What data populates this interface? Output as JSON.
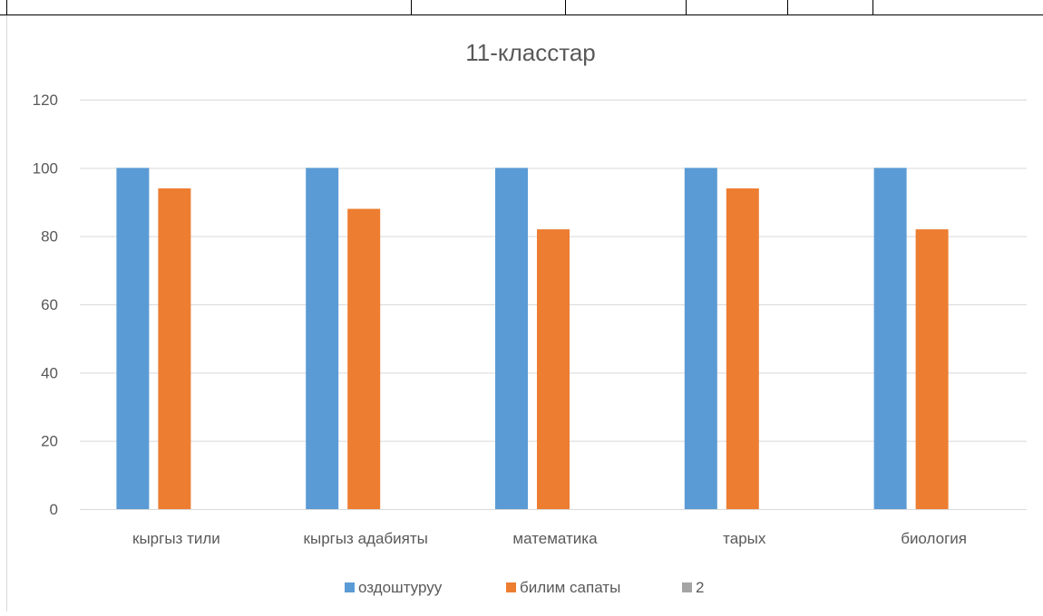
{
  "chart_data": {
    "type": "bar",
    "title": "11-класстар",
    "categories": [
      "кыргыз тили",
      "кыргыз адабияты",
      "математика",
      "тарых",
      "биология"
    ],
    "series": [
      {
        "name": "оздоштуруу",
        "values": [
          100,
          100,
          100,
          100,
          100
        ],
        "color": "#5b9bd5"
      },
      {
        "name": "билим сапаты",
        "values": [
          94,
          88,
          82,
          94,
          82
        ],
        "color": "#ed7d31"
      },
      {
        "name": "2",
        "values": [
          0,
          0,
          0,
          0,
          0
        ],
        "color": "#a5a5a5"
      }
    ],
    "ylim": [
      0,
      120
    ],
    "yticks": [
      0,
      20,
      40,
      60,
      80,
      100,
      120
    ],
    "grid": true,
    "legend": "bottom",
    "xlabel": "",
    "ylabel": ""
  }
}
